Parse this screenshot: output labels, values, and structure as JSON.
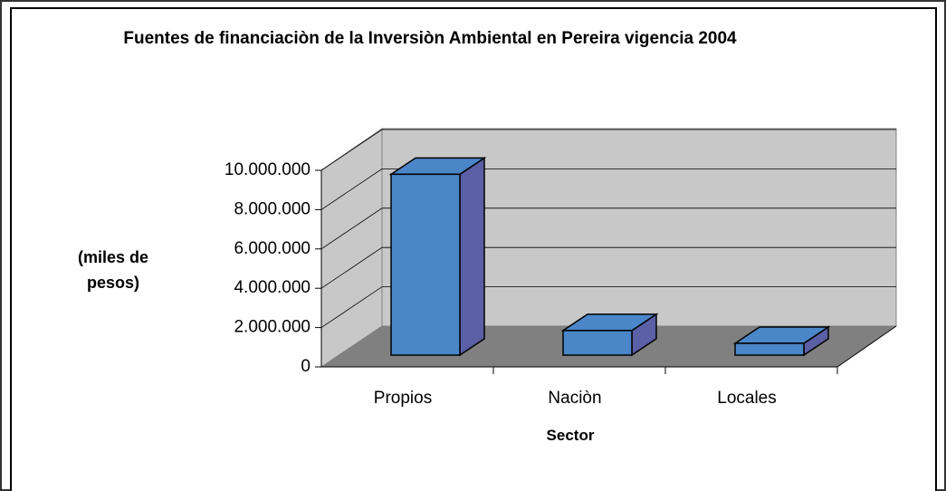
{
  "chart_data": {
    "type": "bar3d",
    "title": "Fuentes de financiaciòn de la Inversiòn Ambiental en Pereira vigencia 2004",
    "y_label": "(miles de pesos)",
    "x_label": "Sector",
    "categories": [
      "Propios",
      "Naciòn",
      "Locales"
    ],
    "values": [
      9200000,
      1250000,
      600000
    ],
    "color": "#4a86c8",
    "side_color": "#5a5fa6",
    "ylim": [
      0,
      10000000
    ],
    "yticks": [
      0,
      {
        "value": 2000000,
        "label": "2.000.000"
      },
      {
        "value": 4000000,
        "label": "4.000.000"
      },
      {
        "value": 6000000,
        "label": "6.000.000"
      },
      {
        "value": 8000000,
        "label": "8.000.000"
      },
      {
        "value": 10000000,
        "label": "10.000.000"
      }
    ],
    "grid": true
  }
}
